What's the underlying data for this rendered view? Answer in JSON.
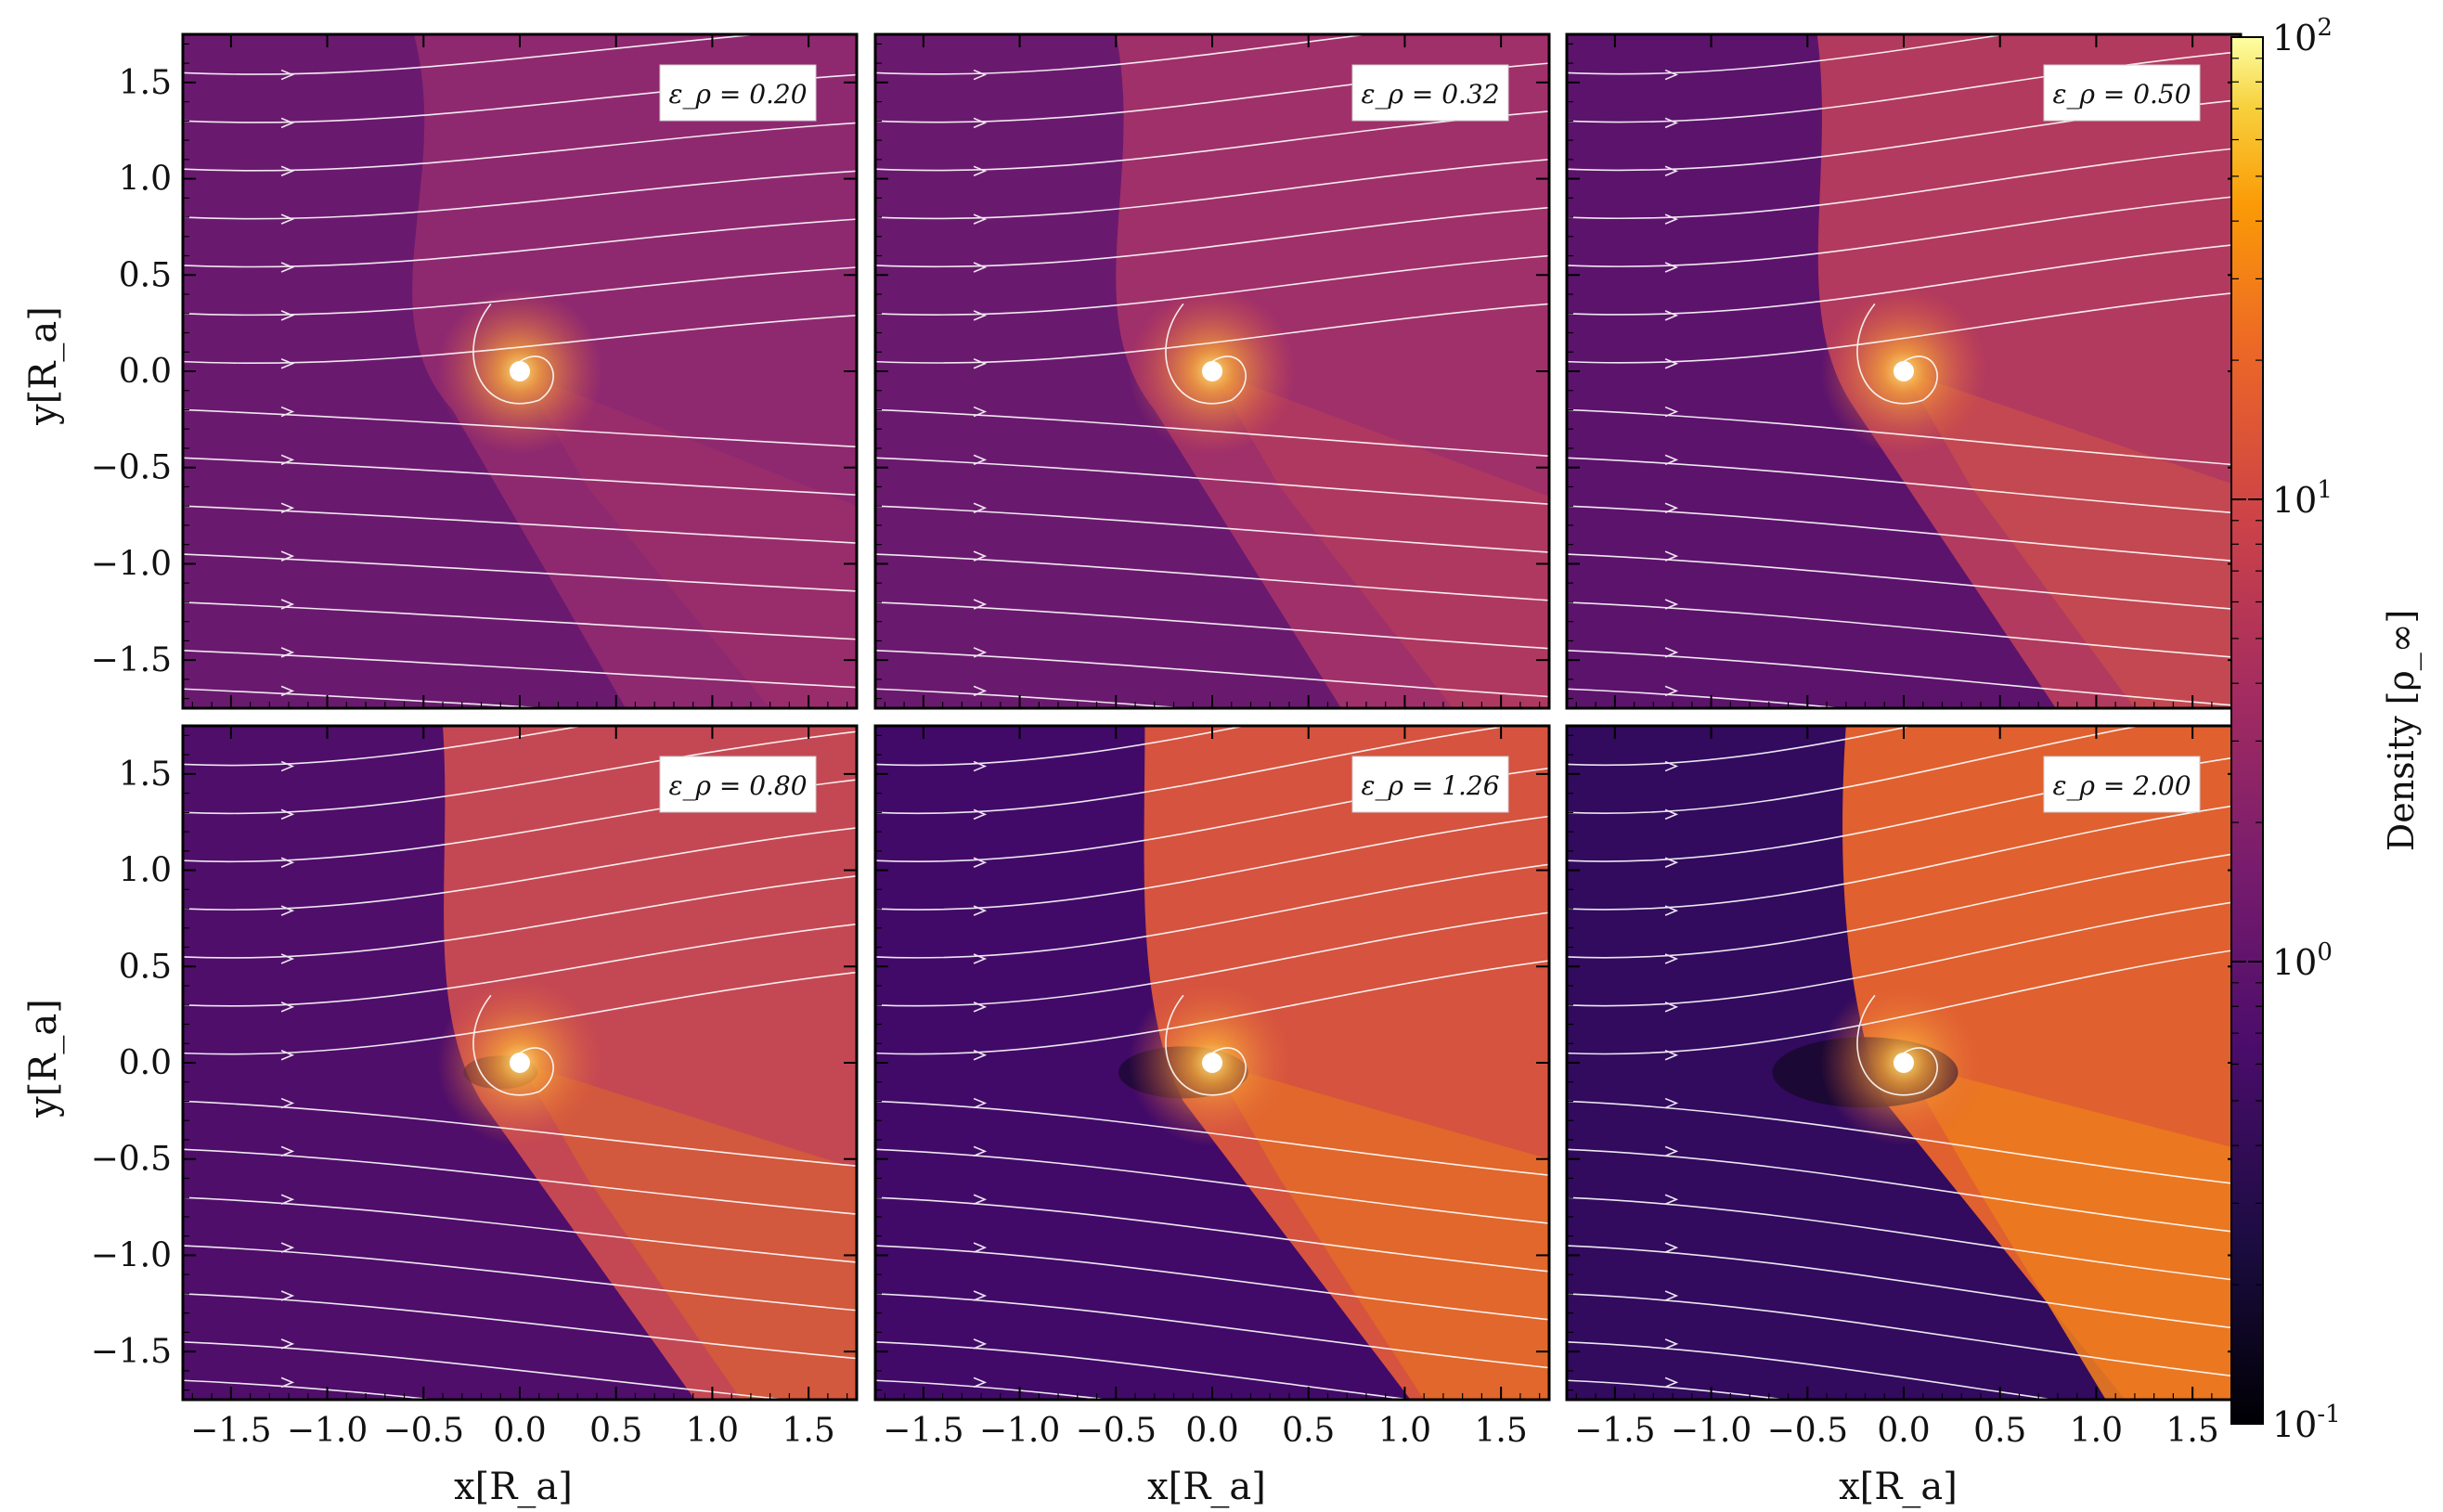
{
  "figure": {
    "panels": [
      {
        "label": "ε_ρ = 0.20",
        "value": 0.2
      },
      {
        "label": "ε_ρ = 0.32",
        "value": 0.32
      },
      {
        "label": "ε_ρ = 0.50",
        "value": 0.5
      },
      {
        "label": "ε_ρ = 0.80",
        "value": 0.8
      },
      {
        "label": "ε_ρ = 1.26",
        "value": 1.26
      },
      {
        "label": "ε_ρ = 2.00",
        "value": 2.0
      }
    ],
    "x_axis": {
      "label": "x[R_a]",
      "ticks": [
        "−1.5",
        "−1.0",
        "−0.5",
        "0.0",
        "0.5",
        "1.0",
        "1.5"
      ]
    },
    "y_axis": {
      "label": "y[R_a]",
      "ticks": [
        "1.5",
        "1.0",
        "0.5",
        "0.0",
        "−0.5",
        "−1.0",
        "−1.5"
      ]
    },
    "colorbar": {
      "label": "Density [ρ_∞]",
      "scale": "log",
      "ticks": [
        "10^2",
        "10^1",
        "10^0",
        "10^-1"
      ],
      "colormap": "inferno",
      "range": [
        0.1,
        100
      ]
    }
  }
}
